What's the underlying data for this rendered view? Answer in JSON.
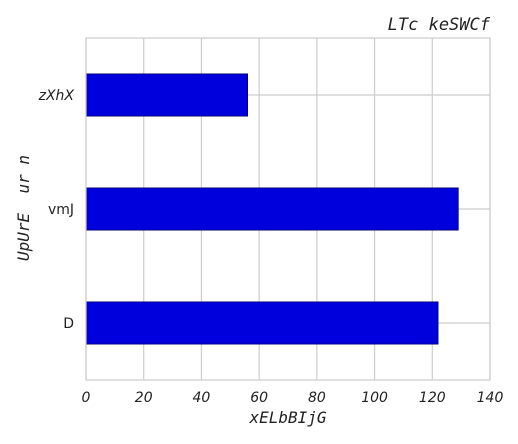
{
  "chart_data": {
    "type": "bar",
    "orientation": "horizontal",
    "title": "LTc keSWCf",
    "xlabel": "xELbBIjG",
    "ylabel": "UpUrE  ur n",
    "categories": [
      "zXhX",
      "vmJ",
      "D"
    ],
    "category_styles": [
      "italic",
      "normal",
      "normal"
    ],
    "values": [
      56,
      129,
      122
    ],
    "xlim": [
      0,
      140
    ],
    "xticks": [
      0,
      20,
      40,
      60,
      80,
      100,
      120,
      140
    ],
    "grid": true,
    "bar_color": "#0000dd",
    "bar_edge_color": "#000066"
  }
}
